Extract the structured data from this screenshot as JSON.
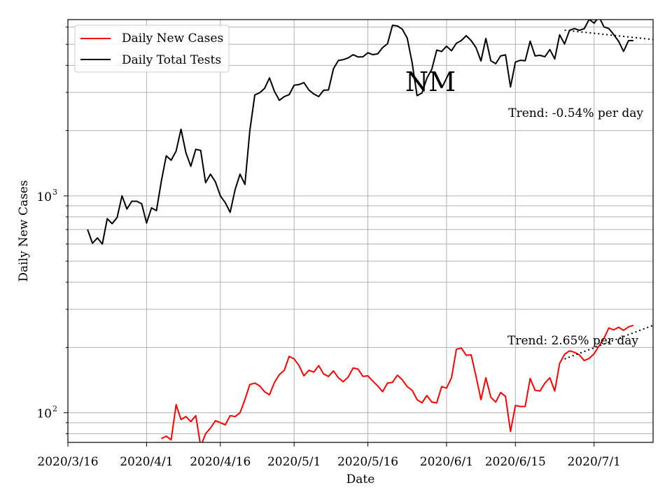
{
  "chart_data": {
    "type": "line",
    "title": "NM",
    "xlabel": "Date",
    "ylabel": "Daily New Cases",
    "yscale": "log",
    "ylim": [
      73,
      6500
    ],
    "xlim": [
      "2020-03-16",
      "2020-07-13"
    ],
    "grid": true,
    "legend_position": "top-left",
    "x_ticks": [
      {
        "date": "2020-03-16",
        "label": "2020/3/16"
      },
      {
        "date": "2020-04-01",
        "label": "2020/4/1"
      },
      {
        "date": "2020-04-16",
        "label": "2020/4/16"
      },
      {
        "date": "2020-05-01",
        "label": "2020/5/1"
      },
      {
        "date": "2020-05-16",
        "label": "2020/5/16"
      },
      {
        "date": "2020-06-01",
        "label": "2020/6/1"
      },
      {
        "date": "2020-06-15",
        "label": "2020/6/15"
      },
      {
        "date": "2020-07-01",
        "label": "2020/7/1"
      }
    ],
    "y_ticks": [
      {
        "value": 100,
        "base": "10",
        "exp": "2"
      },
      {
        "value": 1000,
        "base": "10",
        "exp": "3"
      }
    ],
    "series": [
      {
        "name": "Daily New Cases",
        "color": "#ff0000",
        "start": "2020-04-04",
        "values": [
          76,
          78,
          75,
          109,
          93,
          96,
          91,
          97,
          70,
          80,
          85,
          92,
          90,
          88,
          97,
          96,
          100,
          115,
          135,
          137,
          133,
          125,
          121,
          138,
          150,
          157,
          182,
          177,
          165,
          148,
          157,
          154,
          165,
          151,
          147,
          156,
          145,
          139,
          146,
          161,
          159,
          147,
          148,
          140,
          133,
          125,
          137,
          138,
          149,
          142,
          132,
          127,
          115,
          111,
          120,
          112,
          111,
          132,
          130,
          145,
          196,
          199,
          184,
          185,
          147,
          115,
          145,
          118,
          112,
          124,
          119,
          82,
          108,
          107,
          107,
          144,
          127,
          126,
          137,
          145,
          126,
          169,
          186,
          193,
          190,
          185,
          174,
          178,
          187,
          203,
          220,
          246,
          241,
          248,
          240,
          249,
          253
        ]
      },
      {
        "name": "Daily Total Tests",
        "color": "#000000",
        "start": "2020-03-20",
        "values": [
          700,
          605,
          640,
          600,
          785,
          745,
          795,
          1000,
          870,
          945,
          945,
          920,
          750,
          880,
          855,
          1170,
          1530,
          1460,
          1610,
          2030,
          1580,
          1370,
          1640,
          1620,
          1150,
          1260,
          1160,
          1000,
          930,
          840,
          1070,
          1260,
          1130,
          2000,
          2920,
          2990,
          3130,
          3500,
          3030,
          2760,
          2870,
          2930,
          3240,
          3260,
          3330,
          3080,
          2950,
          2870,
          3070,
          3080,
          3860,
          4210,
          4250,
          4330,
          4480,
          4370,
          4380,
          4570,
          4480,
          4520,
          4830,
          5030,
          6120,
          6080,
          5870,
          5350,
          4110,
          2900,
          2980,
          3490,
          3840,
          4700,
          4630,
          4900,
          4670,
          5060,
          5200,
          5480,
          5200,
          4820,
          4190,
          5320,
          4200,
          4070,
          4420,
          4470,
          3180,
          4140,
          4220,
          4200,
          5170,
          4420,
          4450,
          4380,
          4730,
          4280,
          5530,
          5020,
          5800,
          5910,
          5800,
          5900,
          6520,
          6260,
          6700,
          6020,
          5910,
          5540,
          5160,
          4640,
          5200,
          5200
        ]
      }
    ],
    "trend_lines": [
      {
        "series": "Daily New Cases",
        "rate_pct_per_day": 2.65,
        "start": "2020-06-25",
        "end": "2020-07-13",
        "y_start": 177,
        "y_end": 253
      },
      {
        "series": "Daily Total Tests",
        "rate_pct_per_day": -0.54,
        "start": "2020-06-25",
        "end": "2020-07-13",
        "y_start": 5810,
        "y_end": 5260
      }
    ],
    "annotations": [
      {
        "id": "tests_trend",
        "text": "Trend: -0.54% per day"
      },
      {
        "id": "cases_trend",
        "text": "Trend: 2.65% per day"
      }
    ]
  }
}
